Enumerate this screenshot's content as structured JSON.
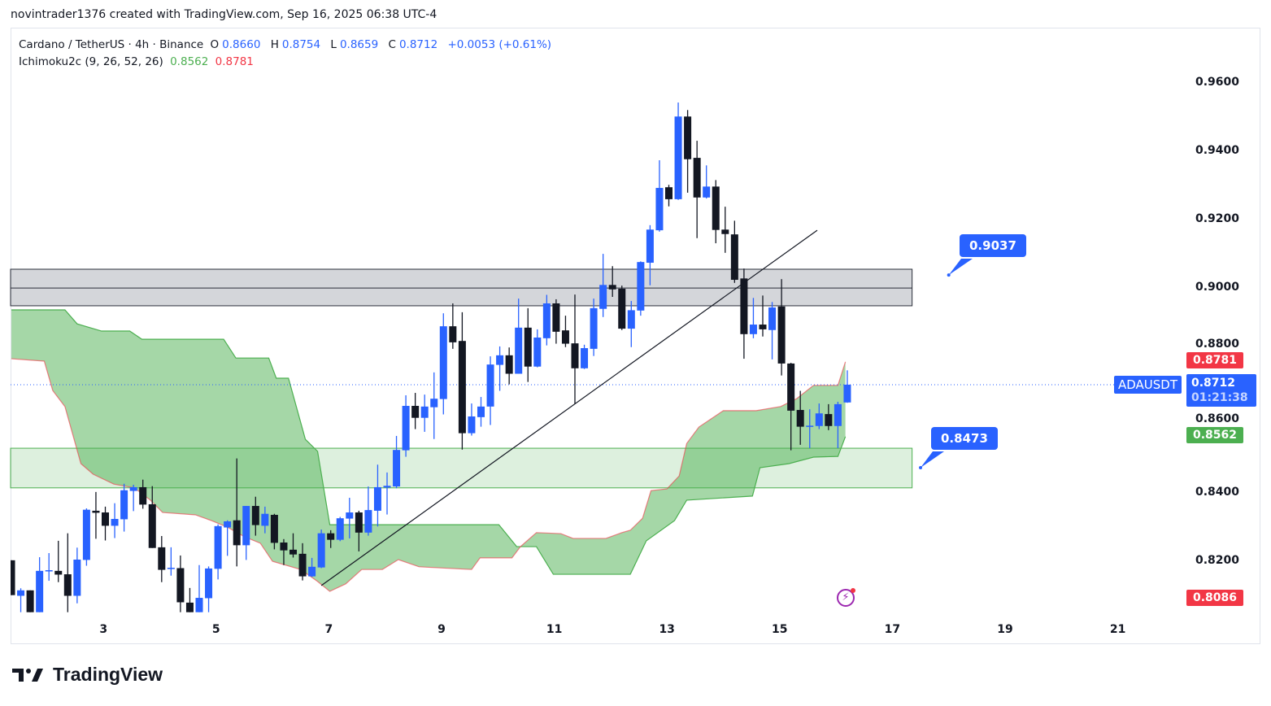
{
  "credit": "novintrader1376 created with TradingView.com, Sep 16, 2025 06:38 UTC-4",
  "legend": {
    "symbol": "Cardano / TetherUS · 4h · Binance",
    "o_label": "O",
    "o": "0.8660",
    "h_label": "H",
    "h": "0.8754",
    "l_label": "L",
    "l": "0.8659",
    "c_label": "C",
    "c": "0.8712",
    "change": "+0.0053 (+0.61%)",
    "indicator": "Ichimoku2c (9, 26, 52, 26)",
    "ind_val1": "0.8562",
    "ind_val2": "0.8781"
  },
  "badges": {
    "symbol_tag": "ADAUSDT",
    "span_red": "0.8781",
    "last_price": "0.8712",
    "countdown": "01:21:38",
    "span_green": "0.8562",
    "low_red": "0.8086"
  },
  "callouts": {
    "upper": "0.9037",
    "lower": "0.8473"
  },
  "logo_text": "TradingView",
  "colors": {
    "up": "#2962ff",
    "down": "#131722",
    "cloud": "#4caf50",
    "span_red": "#f23645",
    "zone_gray": "#d1d4dc",
    "zone_green": "#4caf50"
  },
  "chart_data": {
    "type": "candlestick",
    "title": "Cardano / TetherUS · 4h · Binance",
    "ylim": [
      0.8,
      0.975
    ],
    "y_ticks": [
      0.96,
      0.94,
      0.92,
      0.9,
      0.88,
      0.86,
      0.84,
      0.82
    ],
    "x_ticks": {
      "labels": [
        "3",
        "5",
        "7",
        "9",
        "11",
        "13",
        "15",
        "17",
        "19",
        "21"
      ],
      "index": [
        9.8,
        21.8,
        33.8,
        45.8,
        57.8,
        69.8,
        81.8,
        93.8,
        105.8,
        117.8
      ]
    },
    "candles_ohlc": [
      [
        0.8198,
        0.8198,
        0.8096,
        0.8096
      ],
      [
        0.8094,
        0.8116,
        0.8046,
        0.811
      ],
      [
        0.811,
        0.811,
        0.8046,
        0.8046
      ],
      [
        0.8046,
        0.8207,
        0.8046,
        0.8167
      ],
      [
        0.8167,
        0.8219,
        0.8138,
        0.8169
      ],
      [
        0.8167,
        0.8255,
        0.8134,
        0.8156
      ],
      [
        0.8157,
        0.8277,
        0.8046,
        0.8094
      ],
      [
        0.8094,
        0.8235,
        0.8072,
        0.82
      ],
      [
        0.8199,
        0.835,
        0.8182,
        0.8346
      ],
      [
        0.8343,
        0.8398,
        0.8261,
        0.8337
      ],
      [
        0.8338,
        0.8355,
        0.8256,
        0.8299
      ],
      [
        0.8299,
        0.8365,
        0.8263,
        0.8319
      ],
      [
        0.8318,
        0.8422,
        0.8282,
        0.8403
      ],
      [
        0.8401,
        0.8419,
        0.8342,
        0.8412
      ],
      [
        0.8412,
        0.8434,
        0.8349,
        0.8361
      ],
      [
        0.8362,
        0.8415,
        0.8234,
        0.8234
      ],
      [
        0.8236,
        0.8269,
        0.8134,
        0.817
      ],
      [
        0.8175,
        0.8236,
        0.8153,
        0.8176
      ],
      [
        0.8175,
        0.8212,
        0.8046,
        0.8075
      ],
      [
        0.8074,
        0.8117,
        0.8046,
        0.8046
      ],
      [
        0.8046,
        0.8184,
        0.8046,
        0.8088
      ],
      [
        0.8087,
        0.818,
        0.8046,
        0.8174
      ],
      [
        0.8173,
        0.8303,
        0.8142,
        0.8298
      ],
      [
        0.8294,
        0.8315,
        0.8211,
        0.8312
      ],
      [
        0.8315,
        0.8496,
        0.818,
        0.8242
      ],
      [
        0.8242,
        0.8357,
        0.8199,
        0.8357
      ],
      [
        0.8357,
        0.8384,
        0.827,
        0.8301
      ],
      [
        0.8299,
        0.8355,
        0.8277,
        0.8334
      ],
      [
        0.8331,
        0.8334,
        0.823,
        0.8249
      ],
      [
        0.825,
        0.826,
        0.8184,
        0.8227
      ],
      [
        0.8229,
        0.8277,
        0.8206,
        0.8215
      ],
      [
        0.8217,
        0.8248,
        0.8139,
        0.8151
      ],
      [
        0.8151,
        0.8205,
        0.8149,
        0.8179
      ],
      [
        0.8177,
        0.8288,
        0.8175,
        0.8277
      ],
      [
        0.8277,
        0.8286,
        0.8234,
        0.8258
      ],
      [
        0.8258,
        0.8325,
        0.8254,
        0.8321
      ],
      [
        0.832,
        0.8381,
        0.8262,
        0.8338
      ],
      [
        0.8338,
        0.8343,
        0.8224,
        0.8279
      ],
      [
        0.8279,
        0.8414,
        0.827,
        0.8345
      ],
      [
        0.8343,
        0.8478,
        0.8297,
        0.8412
      ],
      [
        0.8411,
        0.8455,
        0.8332,
        0.8416
      ],
      [
        0.8414,
        0.8562,
        0.8409,
        0.8521
      ],
      [
        0.852,
        0.8681,
        0.8501,
        0.865
      ],
      [
        0.865,
        0.8688,
        0.8582,
        0.8615
      ],
      [
        0.8615,
        0.8683,
        0.8574,
        0.8648
      ],
      [
        0.8646,
        0.8748,
        0.8553,
        0.8671
      ],
      [
        0.867,
        0.8921,
        0.8625,
        0.8883
      ],
      [
        0.8883,
        0.895,
        0.8817,
        0.8836
      ],
      [
        0.884,
        0.8924,
        0.8522,
        0.857
      ],
      [
        0.857,
        0.8657,
        0.8563,
        0.8619
      ],
      [
        0.8617,
        0.8676,
        0.8589,
        0.8648
      ],
      [
        0.8648,
        0.8795,
        0.8594,
        0.8771
      ],
      [
        0.877,
        0.8824,
        0.8694,
        0.8798
      ],
      [
        0.8798,
        0.8821,
        0.8713,
        0.8744
      ],
      [
        0.8744,
        0.8964,
        0.8744,
        0.8879
      ],
      [
        0.8879,
        0.8936,
        0.872,
        0.8765
      ],
      [
        0.8765,
        0.8874,
        0.8763,
        0.885
      ],
      [
        0.8848,
        0.8975,
        0.8827,
        0.895
      ],
      [
        0.895,
        0.8962,
        0.8832,
        0.8867
      ],
      [
        0.8871,
        0.8914,
        0.8822,
        0.8832
      ],
      [
        0.8833,
        0.8976,
        0.8655,
        0.876
      ],
      [
        0.876,
        0.8829,
        0.8758,
        0.8819
      ],
      [
        0.8817,
        0.8964,
        0.8796,
        0.8936
      ],
      [
        0.8934,
        0.9095,
        0.891,
        0.9004
      ],
      [
        0.9004,
        0.9059,
        0.8969,
        0.8991
      ],
      [
        0.8993,
        0.9002,
        0.8872,
        0.8876
      ],
      [
        0.8876,
        0.8957,
        0.8822,
        0.893
      ],
      [
        0.8929,
        0.9073,
        0.8914,
        0.9071
      ],
      [
        0.9069,
        0.9179,
        0.9003,
        0.9166
      ],
      [
        0.9164,
        0.9369,
        0.916,
        0.9288
      ],
      [
        0.929,
        0.9297,
        0.9234,
        0.9255
      ],
      [
        0.9255,
        0.9538,
        0.9253,
        0.9497
      ],
      [
        0.9497,
        0.9516,
        0.9274,
        0.9372
      ],
      [
        0.9376,
        0.9426,
        0.9141,
        0.926
      ],
      [
        0.926,
        0.9354,
        0.9257,
        0.9292
      ],
      [
        0.9292,
        0.9311,
        0.9126,
        0.9165
      ],
      [
        0.9166,
        0.9233,
        0.9098,
        0.9153
      ],
      [
        0.9152,
        0.9192,
        0.901,
        0.9019
      ],
      [
        0.9023,
        0.9052,
        0.8788,
        0.886
      ],
      [
        0.886,
        0.8966,
        0.8848,
        0.8888
      ],
      [
        0.8888,
        0.8973,
        0.8853,
        0.8874
      ],
      [
        0.8872,
        0.8954,
        0.8786,
        0.8938
      ],
      [
        0.8941,
        0.9021,
        0.8739,
        0.8774
      ],
      [
        0.8774,
        0.8776,
        0.852,
        0.8636
      ],
      [
        0.8638,
        0.8694,
        0.8536,
        0.8589
      ],
      [
        0.8589,
        0.864,
        0.8526,
        0.8592
      ],
      [
        0.8591,
        0.8657,
        0.8582,
        0.8628
      ],
      [
        0.8626,
        0.8655,
        0.8579,
        0.8591
      ],
      [
        0.8591,
        0.8662,
        0.8526,
        0.8655
      ],
      [
        0.866,
        0.8754,
        0.8659,
        0.8712
      ]
    ],
    "ichimoku_span_green": [
      [
        0,
        0.8931
      ],
      [
        5.7,
        0.8931
      ],
      [
        7,
        0.889
      ],
      [
        9.6,
        0.8869
      ],
      [
        12.6,
        0.8869
      ],
      [
        13.9,
        0.8845
      ],
      [
        22.6,
        0.8845
      ],
      [
        23.9,
        0.879
      ],
      [
        27.4,
        0.879
      ],
      [
        28.2,
        0.8731
      ],
      [
        29.5,
        0.8731
      ],
      [
        31.3,
        0.8552
      ],
      [
        32.6,
        0.8517
      ],
      [
        33.9,
        0.8302
      ],
      [
        51.9,
        0.8302
      ],
      [
        53.8,
        0.8238
      ],
      [
        55.9,
        0.8238
      ],
      [
        57.7,
        0.8157
      ],
      [
        65.9,
        0.8157
      ],
      [
        67.6,
        0.8255
      ],
      [
        70.6,
        0.8314
      ],
      [
        71.9,
        0.8374
      ],
      [
        78.9,
        0.8386
      ],
      [
        79.7,
        0.8469
      ],
      [
        82.8,
        0.8481
      ],
      [
        85.4,
        0.85
      ],
      [
        88,
        0.8502
      ],
      [
        88.8,
        0.856
      ]
    ],
    "ichimoku_span_red": [
      [
        0,
        0.8788
      ],
      [
        3.5,
        0.8781
      ],
      [
        4.4,
        0.8695
      ],
      [
        5.7,
        0.8648
      ],
      [
        7.4,
        0.8481
      ],
      [
        8.7,
        0.845
      ],
      [
        10.9,
        0.8421
      ],
      [
        13.1,
        0.841
      ],
      [
        14.8,
        0.8374
      ],
      [
        16.1,
        0.8338
      ],
      [
        19.6,
        0.8331
      ],
      [
        21.3,
        0.8314
      ],
      [
        23,
        0.8295
      ],
      [
        24.8,
        0.8267
      ],
      [
        26.5,
        0.8248
      ],
      [
        27.8,
        0.8195
      ],
      [
        30.8,
        0.8171
      ],
      [
        32.6,
        0.8136
      ],
      [
        33.9,
        0.8107
      ],
      [
        35.6,
        0.8129
      ],
      [
        37.3,
        0.8171
      ],
      [
        39.5,
        0.8171
      ],
      [
        41.2,
        0.82
      ],
      [
        43.4,
        0.8179
      ],
      [
        49,
        0.8171
      ],
      [
        49.9,
        0.8205
      ],
      [
        53.3,
        0.8205
      ],
      [
        54.2,
        0.8238
      ],
      [
        55.9,
        0.8279
      ],
      [
        58.5,
        0.8276
      ],
      [
        59.8,
        0.8262
      ],
      [
        63.3,
        0.8262
      ],
      [
        65,
        0.8279
      ],
      [
        65.9,
        0.8286
      ],
      [
        67.2,
        0.8321
      ],
      [
        68.1,
        0.8402
      ],
      [
        69.8,
        0.8407
      ],
      [
        71.1,
        0.8445
      ],
      [
        71.9,
        0.854
      ],
      [
        73.2,
        0.8588
      ],
      [
        75.8,
        0.8636
      ],
      [
        79.3,
        0.8636
      ],
      [
        81.9,
        0.8648
      ],
      [
        83.6,
        0.8671
      ],
      [
        85.4,
        0.871
      ],
      [
        88,
        0.871
      ],
      [
        88.8,
        0.8779
      ]
    ],
    "resistance_zone": {
      "top": 0.905,
      "mid": 0.8995,
      "bottom": 0.8943,
      "end_index": 95.9
    },
    "support_zone": {
      "top": 0.8526,
      "bottom": 0.841,
      "end_index": 95.9
    },
    "trendline": [
      [
        33,
        0.8124
      ],
      [
        85.8,
        0.9164
      ]
    ],
    "callout_points": {
      "upper": [
        99.8,
        0.9033
      ],
      "lower": [
        96.8,
        0.8469
      ]
    },
    "last_price": 0.8712,
    "badge_prices": {
      "span_red": 0.8781,
      "span_green": 0.8562,
      "low_red": 0.8086
    }
  }
}
